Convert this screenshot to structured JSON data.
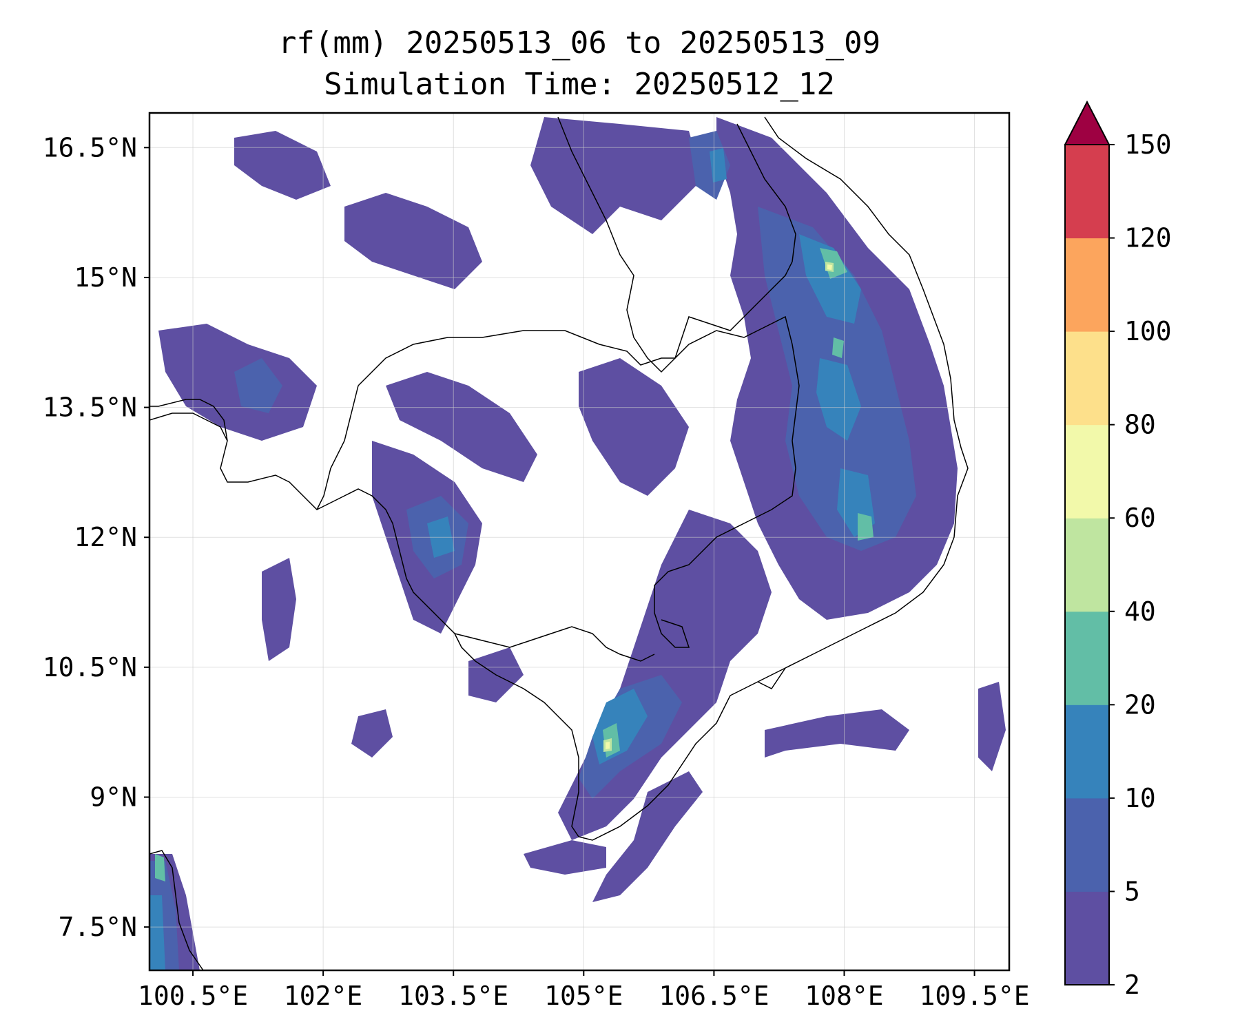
{
  "title": {
    "line1": "rf(mm) 20250513_06 to 20250513_09",
    "line2": "Simulation Time: 20250512_12"
  },
  "map": {
    "lon_range": [
      100.0,
      109.9
    ],
    "lat_range": [
      7.0,
      16.9
    ],
    "lon_ticks": [
      {
        "value": 100.5,
        "label": "100.5°E"
      },
      {
        "value": 102.0,
        "label": "102°E"
      },
      {
        "value": 103.5,
        "label": "103.5°E"
      },
      {
        "value": 105.0,
        "label": "105°E"
      },
      {
        "value": 106.5,
        "label": "106.5°E"
      },
      {
        "value": 108.0,
        "label": "108°E"
      },
      {
        "value": 109.5,
        "label": "109.5°E"
      }
    ],
    "lat_ticks": [
      {
        "value": 16.5,
        "label": "16.5°N"
      },
      {
        "value": 15.0,
        "label": "15°N"
      },
      {
        "value": 13.5,
        "label": "13.5°N"
      },
      {
        "value": 12.0,
        "label": "12°N"
      },
      {
        "value": 10.5,
        "label": "10.5°N"
      },
      {
        "value": 9.0,
        "label": "9°N"
      },
      {
        "value": 7.5,
        "label": "7.5°N"
      }
    ],
    "gridlines": true,
    "rain_color_low": "#5e4fa2",
    "rain_color_mid": "#3288bd",
    "rain_color_high": "#66c2a5"
  },
  "colorbar": {
    "levels": [
      "2",
      "5",
      "10",
      "20",
      "40",
      "60",
      "80",
      "100",
      "120",
      "150"
    ],
    "colors": [
      "#5e4fa2",
      "#4b62ad",
      "#3683bb",
      "#62bea6",
      "#bfe5a0",
      "#f2f9aa",
      "#fde08b",
      "#fca55d",
      "#d53e4f"
    ],
    "extend_color": "#9e0142"
  }
}
